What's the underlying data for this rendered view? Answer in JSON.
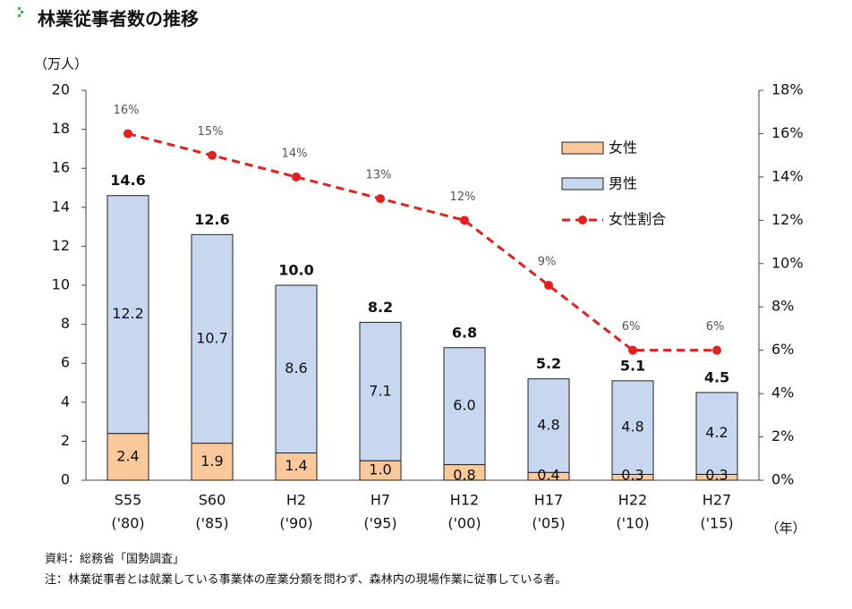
{
  "page": {
    "title": "林業従事者数の推移",
    "source": "資料：総務省「国勢調査」",
    "note": "注：林業従事者とは就業している事業体の産業分類を問わず、森林内の現場作業に従事している者。"
  },
  "colors": {
    "female": "#f9c89b",
    "male": "#c7d7f0",
    "bar_border": "#222222",
    "ratio_line": "#e81e1e",
    "title_bullet": "#4caf50"
  },
  "chart_data": {
    "type": "bar",
    "stacked": true,
    "categories": [
      "S55",
      "S60",
      "H2",
      "H7",
      "H12",
      "H17",
      "H22",
      "H27"
    ],
    "category_years": [
      "('80)",
      "('85)",
      "('90)",
      "('95)",
      "('00)",
      "('05)",
      "('10)",
      "('15)"
    ],
    "series": [
      {
        "name": "女性",
        "values": [
          2.4,
          1.9,
          1.4,
          1.0,
          0.8,
          0.4,
          0.3,
          0.3
        ]
      },
      {
        "name": "男性",
        "values": [
          12.2,
          10.7,
          8.6,
          7.1,
          6.0,
          4.8,
          4.8,
          4.2
        ]
      }
    ],
    "totals": [
      14.6,
      12.6,
      10.0,
      8.2,
      6.8,
      5.2,
      5.1,
      4.5
    ],
    "female_label_text": [
      "2.4",
      "1.9",
      "1.4",
      "1.0",
      "0.8",
      "0.4",
      "0.3",
      "0.3"
    ],
    "male_label_text": [
      "12.2",
      "10.7",
      "8.6",
      "7.1",
      "6.0",
      "4.8",
      "4.8",
      "4.2"
    ],
    "total_label_text": [
      "14.6",
      "12.6",
      "10.0",
      "8.2",
      "6.8",
      "5.2",
      "5.1",
      "4.5"
    ],
    "line_series": {
      "name": "女性割合",
      "axis": "right",
      "values": [
        16,
        15,
        14,
        13,
        12,
        9,
        6,
        6
      ],
      "labels": [
        "16%",
        "15%",
        "14%",
        "13%",
        "12%",
        "9%",
        "6%",
        "6%"
      ]
    },
    "y_left": {
      "unit_label": "（万人）",
      "min": 0,
      "max": 20,
      "step": 2,
      "tick_labels": [
        "0",
        "2",
        "4",
        "6",
        "8",
        "10",
        "12",
        "14",
        "16",
        "18",
        "20"
      ]
    },
    "y_right": {
      "min": 0,
      "max": 18,
      "step": 2,
      "tick_labels": [
        "0%",
        "2%",
        "4%",
        "6%",
        "8%",
        "10%",
        "12%",
        "14%",
        "16%",
        "18%"
      ]
    },
    "x_unit_label": "（年）",
    "legend": {
      "position": "top-right",
      "items": [
        {
          "label": "女性",
          "kind": "box",
          "color_key": "female"
        },
        {
          "label": "男性",
          "kind": "box",
          "color_key": "male"
        },
        {
          "label": "女性割合",
          "kind": "line",
          "color_key": "ratio_line"
        }
      ]
    },
    "grid": false
  }
}
